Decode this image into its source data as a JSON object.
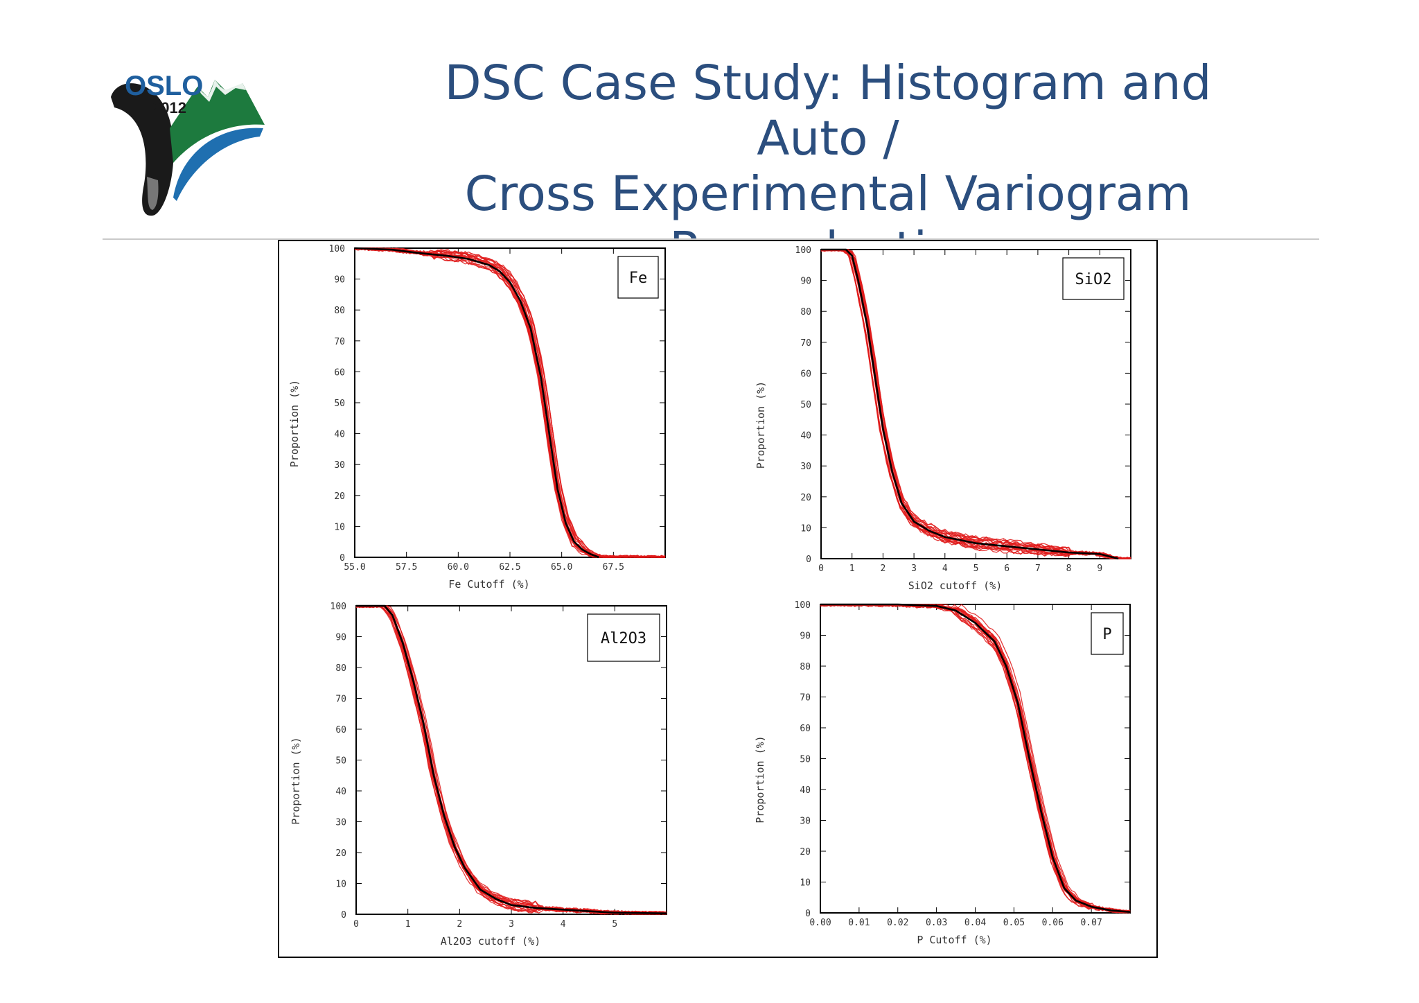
{
  "slide": {
    "title_lines": [
      "DSC Case Study: Histogram and Auto /",
      "Cross Experimental Variogram",
      "Reproduction"
    ],
    "logo": {
      "text_oslo": "OSLO",
      "text_year": "2012"
    }
  },
  "colors": {
    "title": "#2b4e7e",
    "realization": "#e11b1b",
    "reference": "#000000",
    "logo_green": "#1d7a3e",
    "logo_blue": "#1f6fb0"
  },
  "chart_data": [
    {
      "type": "line",
      "panel": "Fe",
      "legend": "Fe",
      "xlabel": "Fe Cutoff (%)",
      "ylabel": "Proportion (%)",
      "xlim": [
        55.0,
        70.0
      ],
      "ylim": [
        0,
        100
      ],
      "xticks": [
        55.0,
        57.5,
        60.0,
        62.5,
        65.0,
        67.5
      ],
      "xtick_labels": [
        "55.0",
        "57.5",
        "60.0",
        "62.5",
        "65.0",
        "67.5"
      ],
      "yticks": [
        0,
        10,
        20,
        30,
        40,
        50,
        60,
        70,
        80,
        90,
        100
      ],
      "reference": {
        "x": [
          55.0,
          56.8,
          58.0,
          59.5,
          60.5,
          61.5,
          62.0,
          62.5,
          63.0,
          63.5,
          64.0,
          64.4,
          64.8,
          65.2,
          65.6,
          66.0,
          66.4,
          66.8
        ],
        "y": [
          100,
          99.5,
          98.5,
          97.5,
          96.5,
          94.5,
          92.5,
          89,
          83,
          74,
          58,
          40,
          22,
          11,
          5,
          2.5,
          1,
          0
        ]
      },
      "series": [
        {
          "realizations": 20
        }
      ]
    },
    {
      "type": "line",
      "panel": "SiO2",
      "legend": "SiO2",
      "xlabel": "SiO2 cutoff (%)",
      "ylabel": "Proportion (%)",
      "xlim": [
        0,
        10
      ],
      "ylim": [
        0,
        100
      ],
      "xticks": [
        0,
        1,
        2,
        3,
        4,
        5,
        6,
        7,
        8,
        9
      ],
      "xtick_labels": [
        "0",
        "1",
        "2",
        "3",
        "4",
        "5",
        "6",
        "7",
        "8",
        "9"
      ],
      "yticks": [
        0,
        10,
        20,
        30,
        40,
        50,
        60,
        70,
        80,
        90,
        100
      ],
      "reference": {
        "x": [
          0,
          0.8,
          1.0,
          1.2,
          1.5,
          1.8,
          2.0,
          2.3,
          2.6,
          3.0,
          3.5,
          4.0,
          5.0,
          6.0,
          7.0,
          8.0,
          9.0,
          9.6
        ],
        "y": [
          100,
          100,
          98,
          90,
          75,
          55,
          42,
          28,
          18,
          12,
          9,
          7,
          5,
          4,
          3,
          2,
          1.5,
          0
        ]
      },
      "series": [
        {
          "realizations": 20
        }
      ]
    },
    {
      "type": "line",
      "panel": "Al2O3",
      "legend": "Al2O3",
      "xlabel": "Al2O3 cutoff (%)",
      "ylabel": "Proportion (%)",
      "xlim": [
        0,
        6
      ],
      "ylim": [
        0,
        100
      ],
      "xticks": [
        0,
        1,
        2,
        3,
        4,
        5
      ],
      "xtick_labels": [
        "0",
        "1",
        "2",
        "3",
        "4",
        "5"
      ],
      "yticks": [
        0,
        10,
        20,
        30,
        40,
        50,
        60,
        70,
        80,
        90,
        100
      ],
      "reference": {
        "x": [
          0,
          0.55,
          0.7,
          0.9,
          1.1,
          1.3,
          1.5,
          1.7,
          1.9,
          2.1,
          2.4,
          2.7,
          3.0,
          3.5,
          4.0,
          5.0,
          6.0
        ],
        "y": [
          100,
          100,
          97,
          88,
          76,
          62,
          45,
          32,
          22,
          15,
          8,
          5,
          3,
          2,
          1.5,
          0.5,
          0.3
        ]
      },
      "series": [
        {
          "realizations": 20
        }
      ]
    },
    {
      "type": "line",
      "panel": "P",
      "legend": "P",
      "xlabel": "P Cutoff (%)",
      "ylabel": "Proportion (%)",
      "xlim": [
        0.0,
        0.08
      ],
      "ylim": [
        0,
        100
      ],
      "xticks": [
        0.0,
        0.01,
        0.02,
        0.03,
        0.04,
        0.05,
        0.06,
        0.07
      ],
      "xtick_labels": [
        "0.00",
        "0.01",
        "0.02",
        "0.03",
        "0.04",
        "0.05",
        "0.06",
        "0.07"
      ],
      "yticks": [
        0,
        10,
        20,
        30,
        40,
        50,
        60,
        70,
        80,
        90,
        100
      ],
      "reference": {
        "x": [
          0.0,
          0.02,
          0.03,
          0.035,
          0.04,
          0.045,
          0.048,
          0.051,
          0.054,
          0.057,
          0.06,
          0.063,
          0.066,
          0.07,
          0.075,
          0.08
        ],
        "y": [
          100,
          100,
          99.5,
          98,
          94,
          88,
          80,
          68,
          50,
          33,
          18,
          8,
          4,
          2,
          0.8,
          0.3
        ]
      },
      "series": [
        {
          "realizations": 20
        }
      ]
    }
  ]
}
